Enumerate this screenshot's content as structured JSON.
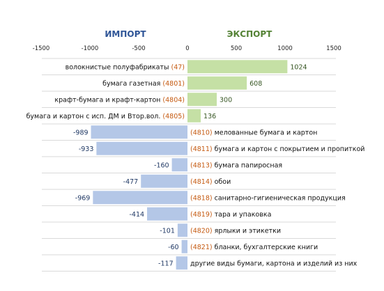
{
  "chart_data": {
    "type": "bar",
    "orientation": "horizontal",
    "headers": {
      "import": "ИМПОРТ",
      "export": "ЭКСПОРТ"
    },
    "colors": {
      "import": "#b4c7e7",
      "export": "#c5e0a5",
      "import_text": "#2f5597",
      "export_text": "#548235",
      "code": "#c55a11"
    },
    "xlim": [
      -1500,
      1500
    ],
    "ticks": [
      "-1500",
      "-1000",
      "-500",
      "0",
      "500",
      "1000",
      "1500"
    ],
    "tick_values": [
      -1500,
      -1000,
      -500,
      0,
      500,
      1000,
      1500
    ],
    "grid": "horizontal",
    "rows": [
      {
        "name": "волокнистые полуфабрикаты",
        "code": "(47)",
        "value": 1024,
        "value_label": "1024"
      },
      {
        "name": "бумага газетная",
        "code": "(4801)",
        "value": 608,
        "value_label": "608"
      },
      {
        "name": "крафт-бумага и крафт-картон",
        "code": "(4804)",
        "value": 300,
        "value_label": "300"
      },
      {
        "name": "бумага и картон с исп. ДМ и Втор.вол.",
        "code": "(4805)",
        "value": 136,
        "value_label": "136"
      },
      {
        "name": "мелованные бумага и картон",
        "code": "(4810)",
        "value": -989,
        "value_label": "-989"
      },
      {
        "name": "бумага и картон с покрытием и пропиткой",
        "code": "(4811)",
        "value": -933,
        "value_label": "-933"
      },
      {
        "name": "бумага папиросная",
        "code": "(4813)",
        "value": -160,
        "value_label": "-160"
      },
      {
        "name": "обои",
        "code": "(4814)",
        "value": -477,
        "value_label": "-477"
      },
      {
        "name": "санитарно-гигиеническая продукция",
        "code": "(4818)",
        "value": -969,
        "value_label": "-969"
      },
      {
        "name": "тара и упаковка",
        "code": "(4819)",
        "value": -414,
        "value_label": "-414"
      },
      {
        "name": "ярлыки и этикетки",
        "code": "(4820)",
        "value": -101,
        "value_label": "-101"
      },
      {
        "name": "бланки, бухгалтерские книги",
        "code": "(4821)",
        "value": -60,
        "value_label": "-60"
      },
      {
        "name": "другие виды бумаги, картона и изделий из них",
        "code": "",
        "value": -117,
        "value_label": "-117"
      }
    ]
  }
}
